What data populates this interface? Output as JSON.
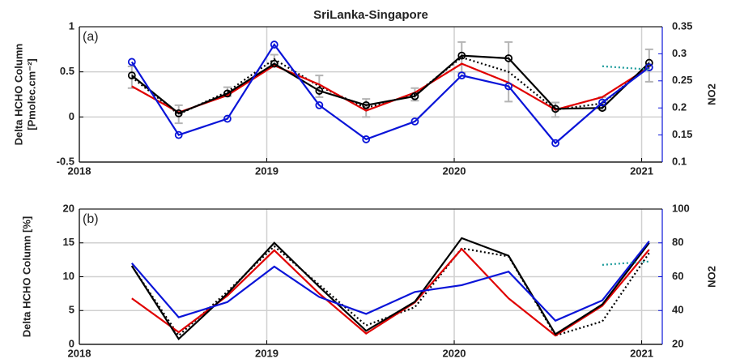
{
  "chart_data": [
    {
      "type": "line",
      "title": "SriLanka-Singapore",
      "annotation": "(a)",
      "ylabel": [
        "Delta HCHO Column",
        "[Pmolec.cm⁻²]"
      ],
      "y2label": "NO2",
      "x": [
        2018.28,
        2018.53,
        2018.79,
        2019.04,
        2019.28,
        2019.53,
        2019.79,
        2020.04,
        2020.29,
        2020.54,
        2020.79,
        2021.04
      ],
      "xlim": [
        2018,
        2021.11
      ],
      "xticks": [
        2018,
        2019,
        2020,
        2021
      ],
      "ylim": [
        -0.5,
        1
      ],
      "yticks": [
        -0.5,
        0,
        0.5,
        1
      ],
      "y2lim": [
        0.1,
        0.35
      ],
      "y2ticks": [
        0.1,
        0.15,
        0.2,
        0.25,
        0.3,
        0.35
      ],
      "grid": true,
      "series": [
        {
          "color": "#000000",
          "style": "dotted",
          "values": [
            0.44,
            0.03,
            0.28,
            0.64,
            0.34,
            0.1,
            0.25,
            0.66,
            0.5,
            0.08,
            0.15,
            0.57
          ],
          "errors": [
            0.12,
            0.1,
            0.05,
            0.05,
            0.12,
            0.1,
            0.07,
            0.17,
            0.33,
            0.08,
            0.07,
            0.18
          ],
          "error_color": "#b4b4b4"
        },
        {
          "color": "#e00000",
          "style": "solid",
          "values": [
            0.34,
            0.05,
            0.24,
            0.57,
            0.36,
            0.07,
            0.27,
            0.59,
            0.38,
            0.08,
            0.22,
            0.55
          ]
        },
        {
          "color": "#000000",
          "style": "solid",
          "marker": "o",
          "values": [
            0.46,
            0.04,
            0.26,
            0.59,
            0.29,
            0.13,
            0.23,
            0.68,
            0.65,
            0.09,
            0.1,
            0.6
          ]
        },
        {
          "color": "#0a14d8",
          "style": "solid",
          "marker": "o",
          "axis": "y2",
          "values": [
            0.285,
            0.15,
            0.18,
            0.317,
            0.205,
            0.142,
            0.175,
            0.26,
            0.24,
            0.135,
            0.21,
            0.275
          ]
        },
        {
          "color": "#1a9a9a",
          "style": "dotted",
          "axis": "y2",
          "values": [
            null,
            null,
            null,
            null,
            null,
            null,
            null,
            null,
            null,
            null,
            0.277,
            0.271
          ]
        }
      ]
    },
    {
      "type": "line",
      "annotation": "(b)",
      "ylabel": [
        "Delta HCHO Column [%]"
      ],
      "y2label": "NO2",
      "x": [
        2018.28,
        2018.53,
        2018.79,
        2019.04,
        2019.28,
        2019.53,
        2019.79,
        2020.04,
        2020.29,
        2020.54,
        2020.79,
        2021.04
      ],
      "xlim": [
        2018,
        2021.11
      ],
      "xticks": [
        2018,
        2019,
        2020,
        2021
      ],
      "ylim": [
        0,
        20
      ],
      "yticks": [
        0,
        5,
        10,
        15,
        20
      ],
      "y2lim": [
        20,
        100
      ],
      "y2ticks": [
        20,
        40,
        60,
        80,
        100
      ],
      "grid": true,
      "series": [
        {
          "color": "#000000",
          "style": "dotted",
          "values": [
            11.6,
            1.3,
            7.8,
            14.5,
            8.8,
            2.8,
            5.5,
            14.2,
            13.0,
            1.3,
            3.4,
            13.5
          ]
        },
        {
          "color": "#e00000",
          "style": "solid",
          "values": [
            6.8,
            1.8,
            7.2,
            13.9,
            7.5,
            1.6,
            6.2,
            14.1,
            6.8,
            1.3,
            5.7,
            14.0
          ]
        },
        {
          "color": "#000000",
          "style": "solid",
          "values": [
            11.6,
            0.8,
            7.5,
            15.0,
            8.5,
            2.0,
            6.3,
            15.7,
            13.1,
            1.5,
            5.9,
            15.0
          ]
        },
        {
          "color": "#0a14d8",
          "style": "solid",
          "axis": "y2",
          "values": [
            68,
            36,
            45,
            66,
            48,
            38,
            51,
            55,
            63,
            34,
            46,
            81
          ]
        },
        {
          "color": "#1a9a9a",
          "style": "dotted",
          "axis": "y2",
          "values": [
            null,
            null,
            null,
            null,
            null,
            null,
            null,
            null,
            null,
            null,
            67,
            69
          ]
        }
      ]
    }
  ]
}
